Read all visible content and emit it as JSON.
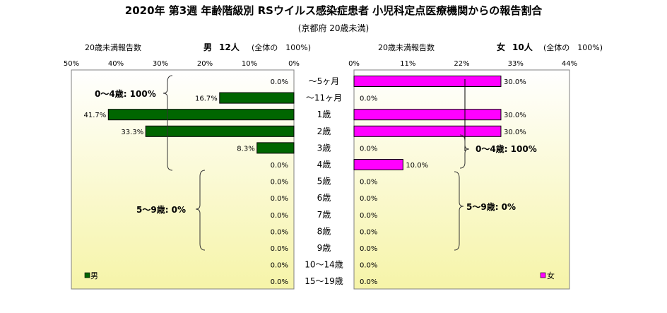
{
  "title": "2020年 第3週 年齢階級別 RSウイルス感染症患者 小児科定点医療機関からの報告割合",
  "subtitle": "(京都府 20歳未満)",
  "colors": {
    "male": "#006600",
    "female": "#ff00ff",
    "plot_top": "#ffffff",
    "plot_bottom": "#f6f4a8"
  },
  "left_header": {
    "note": "20歳未満報告数",
    "sex_label": "男",
    "count": "12人",
    "total_note": "(全体の　100%)"
  },
  "right_header": {
    "note": "20歳未満報告数",
    "sex_label": "女",
    "count": "10人",
    "total_note": "(全体の　100%)"
  },
  "left_brace_labels": [
    "0～4歳: 100%",
    "5～9歳: 0%"
  ],
  "right_brace_labels": [
    "0～4歳: 100%",
    "5～9歳: 0%"
  ],
  "chart_data": {
    "type": "bar",
    "orientation": "horizontal-population-pyramid",
    "title": "2020年 第3週 年齢階級別 RSウイルス感染症患者 小児科定点医療機関からの報告割合",
    "categories": [
      "～5ヶ月",
      "～11ヶ月",
      "1歳",
      "2歳",
      "3歳",
      "4歳",
      "5歳",
      "6歳",
      "7歳",
      "8歳",
      "9歳",
      "10～14歳",
      "15～19歳"
    ],
    "series": [
      {
        "name": "男",
        "values": [
          0.0,
          16.7,
          41.7,
          33.3,
          8.3,
          0.0,
          0.0,
          0.0,
          0.0,
          0.0,
          0.0,
          0.0,
          0.0
        ],
        "labels": [
          "0.0%",
          "16.7%",
          "41.7%",
          "33.3%",
          "8.3%",
          "0.0%",
          "0.0%",
          "0.0%",
          "0.0%",
          "0.0%",
          "0.0%",
          "0.0%",
          "0.0%"
        ],
        "xlim": [
          0,
          50
        ],
        "ticks": [
          "50%",
          "40%",
          "30%",
          "20%",
          "10%",
          "0%"
        ],
        "tick_values": [
          50,
          40,
          30,
          20,
          10,
          0
        ]
      },
      {
        "name": "女",
        "values": [
          30.0,
          0.0,
          30.0,
          30.0,
          0.0,
          10.0,
          0.0,
          0.0,
          0.0,
          0.0,
          0.0,
          0.0,
          0.0
        ],
        "labels": [
          "30.0%",
          "0.0%",
          "30.0%",
          "30.0%",
          "0.0%",
          "10.0%",
          "0.0%",
          "0.0%",
          "0.0%",
          "0.0%",
          "0.0%",
          "0.0%",
          "0.0%"
        ],
        "xlim": [
          0,
          44
        ],
        "ticks": [
          "0%",
          "11%",
          "22%",
          "33%",
          "44%"
        ],
        "tick_values": [
          0,
          11,
          22,
          33,
          44
        ]
      }
    ],
    "legend": [
      {
        "name": "男",
        "placement": "bottom-left"
      },
      {
        "name": "女",
        "placement": "bottom-right"
      }
    ]
  }
}
